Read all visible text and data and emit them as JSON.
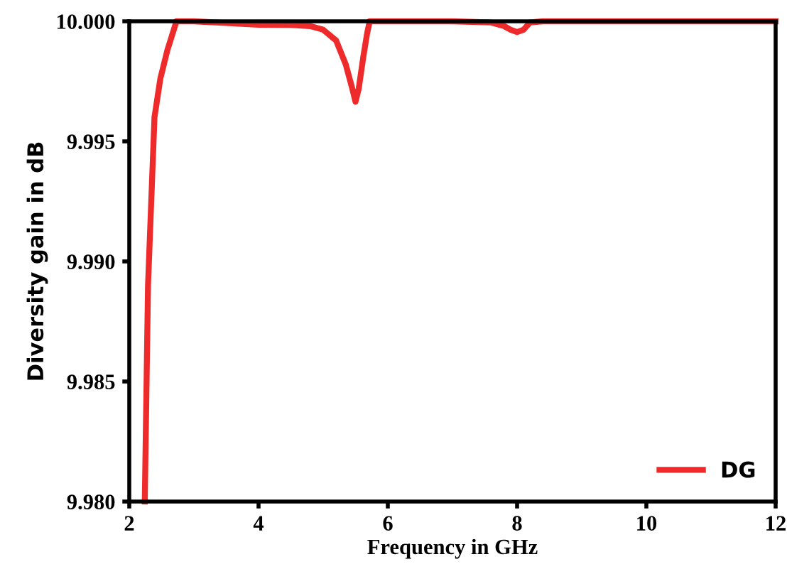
{
  "chart_data": {
    "type": "line",
    "xlabel": "Frequency in GHz",
    "ylabel": "Diversity gain in dB",
    "xlim": [
      2,
      12
    ],
    "xticks": [
      2,
      4,
      6,
      8,
      10,
      12
    ],
    "ylim": [
      9.98,
      10.0
    ],
    "yticks": [
      {
        "value": 9.98,
        "label": "9.980"
      },
      {
        "value": 9.985,
        "label": "9.985"
      },
      {
        "value": 9.99,
        "label": "9.990"
      },
      {
        "value": 9.995,
        "label": "9.995"
      },
      {
        "value": 10.0,
        "label": "10.000"
      }
    ],
    "grid": false,
    "legend": "bottom right",
    "marker": "none",
    "line_style": "solid",
    "series": [
      {
        "name": "DG",
        "color": "#ee2a2a",
        "x": [
          2.24,
          2.29,
          2.39,
          2.48,
          2.59,
          2.73,
          3.0,
          3.5,
          4.0,
          4.5,
          4.8,
          5.0,
          5.2,
          5.35,
          5.45,
          5.5,
          5.55,
          5.62,
          5.68,
          5.72,
          6.0,
          7.0,
          7.6,
          7.8,
          7.9,
          8.0,
          8.1,
          8.2,
          8.4,
          9.0,
          10.0,
          11.0,
          12.0
        ],
        "values": [
          9.98,
          9.989,
          9.996,
          9.9976,
          9.9988,
          10.0,
          10.0,
          9.99993,
          9.99986,
          9.99985,
          9.9998,
          9.99965,
          9.9992,
          9.9982,
          9.9972,
          9.99665,
          9.9972,
          9.9985,
          9.9995,
          10.0,
          10.0,
          10.0,
          9.99995,
          9.9998,
          9.99965,
          9.99955,
          9.99965,
          9.99995,
          10.0,
          10.0,
          10.0,
          10.0,
          10.0
        ]
      }
    ]
  }
}
